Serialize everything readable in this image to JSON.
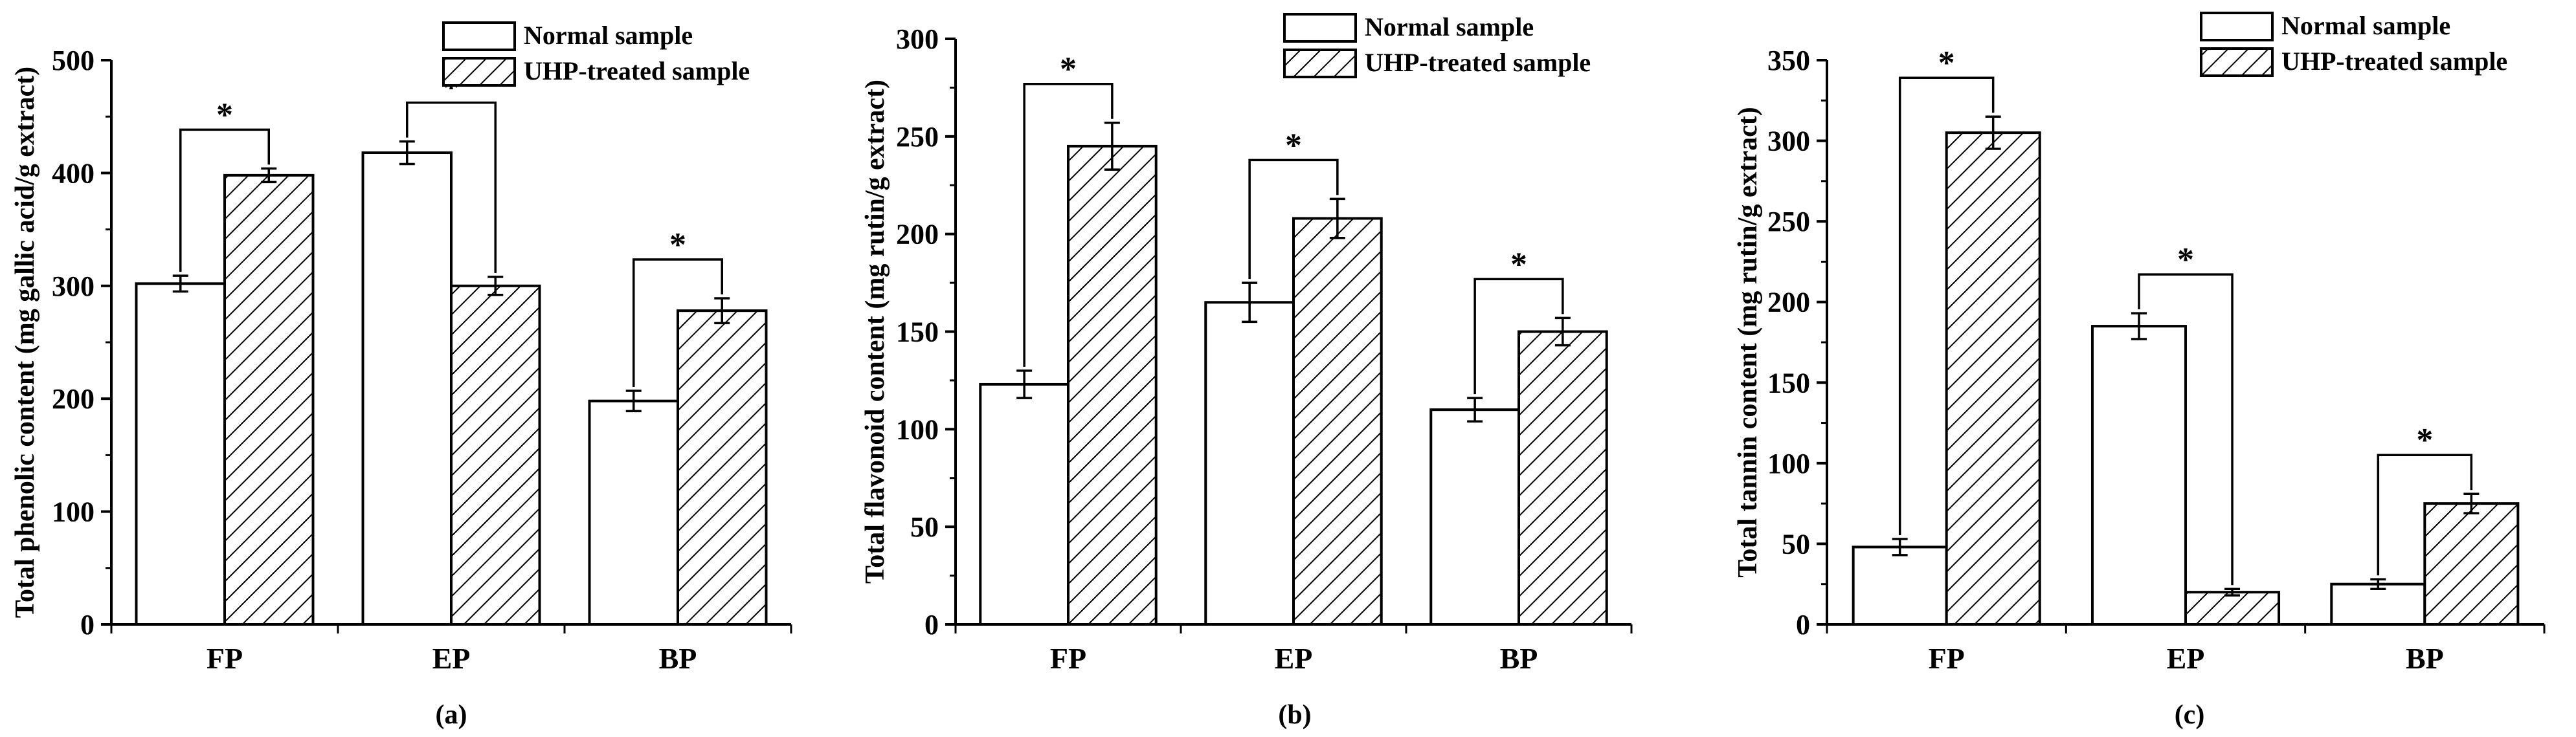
{
  "chart_data": [
    {
      "type": "bar",
      "panel": "(a)",
      "categories": [
        "FP",
        "EP",
        "BP"
      ],
      "series": [
        {
          "name": "Normal sample",
          "values": [
            302,
            418,
            198
          ],
          "errors": [
            7,
            10,
            9
          ]
        },
        {
          "name": "UHP-treated sample",
          "values": [
            398,
            300,
            278
          ],
          "errors": [
            6,
            8,
            11
          ]
        }
      ],
      "significance": [
        "*",
        "*",
        "*"
      ],
      "ylabel": "Total phenolic content (mg gallic acid/g extract)",
      "xlabel": "",
      "ylim": [
        0,
        500
      ],
      "yticks": [
        0,
        100,
        200,
        300,
        400,
        500
      ],
      "legend": "top-right"
    },
    {
      "type": "bar",
      "panel": "(b)",
      "categories": [
        "FP",
        "EP",
        "BP"
      ],
      "series": [
        {
          "name": "Normal sample",
          "values": [
            123,
            165,
            110
          ],
          "errors": [
            7,
            10,
            6
          ]
        },
        {
          "name": "UHP-treated sample",
          "values": [
            245,
            208,
            150
          ],
          "errors": [
            12,
            10,
            7
          ]
        }
      ],
      "significance": [
        "*",
        "*",
        "*"
      ],
      "ylabel": "Total flavonoid content (mg rutin/g extract)",
      "xlabel": "",
      "ylim": [
        0,
        300
      ],
      "yticks": [
        0,
        50,
        100,
        150,
        200,
        250,
        300
      ],
      "legend": "top-right"
    },
    {
      "type": "bar",
      "panel": "(c)",
      "categories": [
        "FP",
        "EP",
        "BP"
      ],
      "series": [
        {
          "name": "Normal sample",
          "values": [
            48,
            185,
            25
          ],
          "errors": [
            5,
            8,
            3
          ]
        },
        {
          "name": "UHP-treated sample",
          "values": [
            305,
            20,
            75
          ],
          "errors": [
            10,
            2,
            6
          ]
        }
      ],
      "significance": [
        "*",
        "*",
        "*"
      ],
      "ylabel": "Total tannin content (mg rutin/g extract)",
      "xlabel": "",
      "ylim": [
        0,
        350
      ],
      "yticks": [
        0,
        50,
        100,
        150,
        200,
        250,
        300,
        350
      ],
      "legend": "top-right"
    }
  ]
}
